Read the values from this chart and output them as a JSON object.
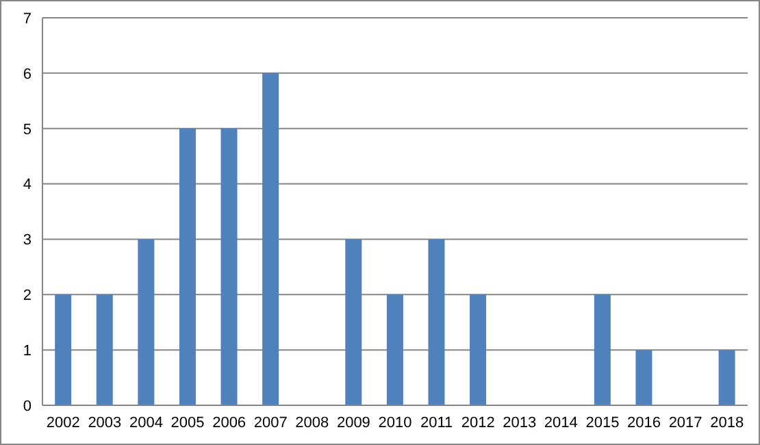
{
  "chart_data": {
    "type": "bar",
    "categories": [
      "2002",
      "2003",
      "2004",
      "2005",
      "2006",
      "2007",
      "2008",
      "2009",
      "2010",
      "2011",
      "2012",
      "2013",
      "2014",
      "2015",
      "2016",
      "2017",
      "2018"
    ],
    "values": [
      2,
      2,
      3,
      5,
      5,
      6,
      0,
      3,
      2,
      3,
      2,
      0,
      0,
      2,
      1,
      0,
      1
    ],
    "color": "#4f81bd",
    "ylim": [
      0,
      7
    ],
    "yticks": [
      0,
      1,
      2,
      3,
      4,
      5,
      6,
      7
    ],
    "grid": "y"
  }
}
